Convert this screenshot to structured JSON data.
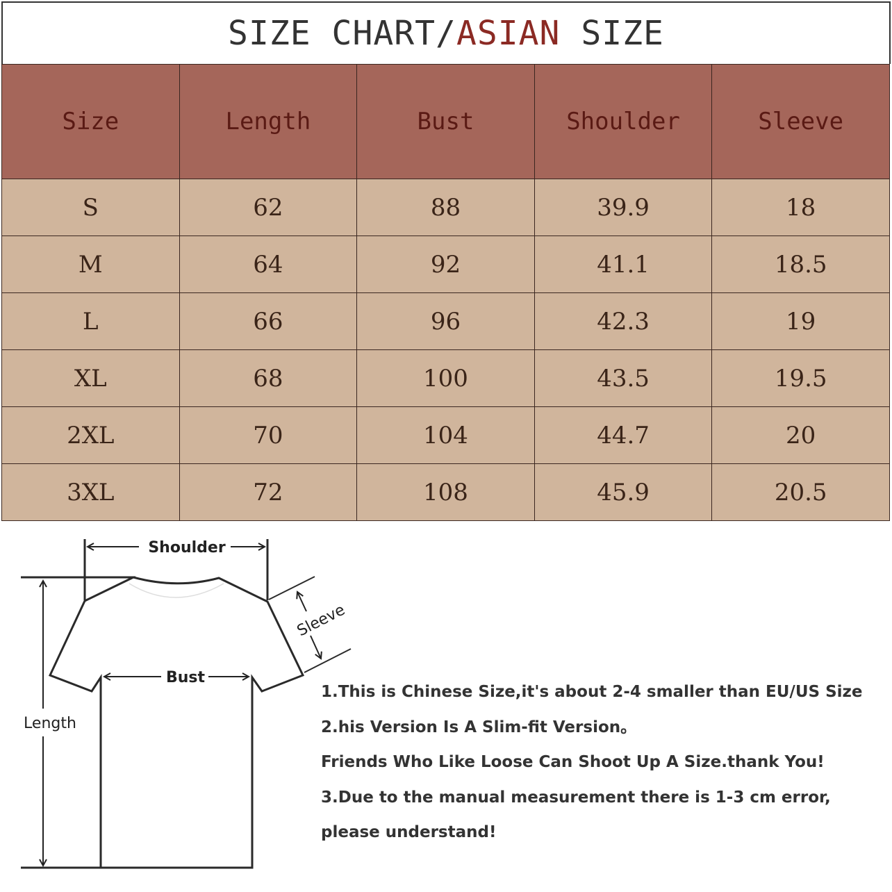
{
  "title": {
    "part1": "SIZE CHART/",
    "accent": "ASIAN",
    "part2": " SIZE",
    "accent_color": "#8b2a24"
  },
  "table": {
    "headers": [
      "Size",
      "Length",
      "Bust",
      "Shoulder",
      "Sleeve"
    ],
    "rows": [
      [
        "S",
        "62",
        "88",
        "39.9",
        "18"
      ],
      [
        "M",
        "64",
        "92",
        "41.1",
        "18.5"
      ],
      [
        "L",
        "66",
        "96",
        "42.3",
        "19"
      ],
      [
        "XL",
        "68",
        "100",
        "43.5",
        "19.5"
      ],
      [
        "2XL",
        "70",
        "104",
        "44.7",
        "20"
      ],
      [
        "3XL",
        "72",
        "108",
        "45.9",
        "20.5"
      ]
    ],
    "header_color": "#a5665a",
    "row_color": "#d0b59c"
  },
  "diagram": {
    "shoulder": "Shoulder",
    "sleeve": "Sleeve",
    "bust": "Bust",
    "length": "Length"
  },
  "notes": [
    "1.This is Chinese Size,it's about 2-4 smaller than EU/US Size",
    "2.his Version Is A Slim-fit Version。",
    "Friends Who Like Loose Can Shoot Up A Size.thank You!",
    "3.Due to the manual measurement there is 1-3 cm error,",
    "please understand!"
  ]
}
